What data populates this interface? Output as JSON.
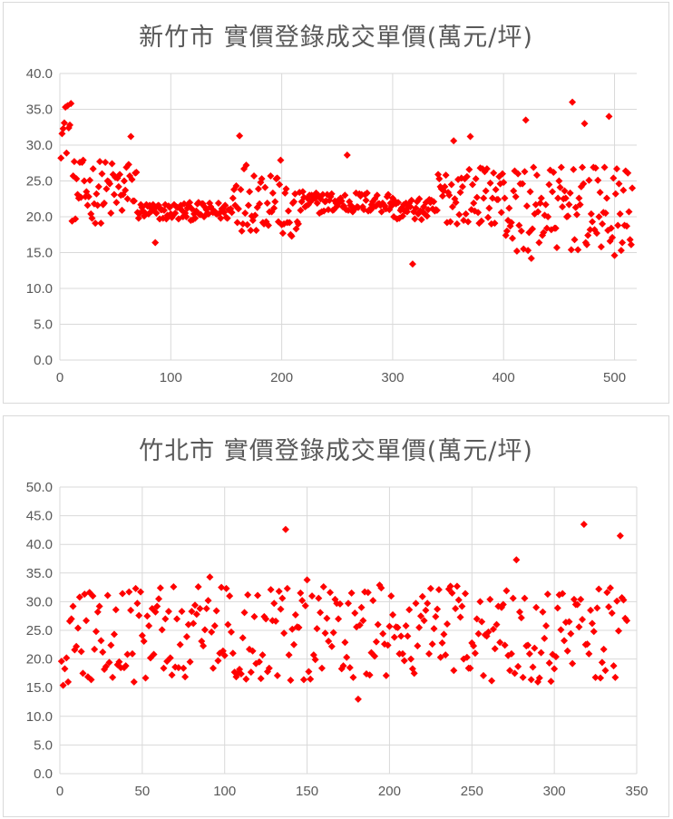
{
  "chart_data": [
    {
      "type": "scatter",
      "title": "新竹市 實價登錄成交單價(萬元/坪)",
      "xlim": [
        0,
        520
      ],
      "ylim": [
        0,
        40
      ],
      "x_ticks": [
        0,
        100,
        200,
        300,
        400,
        500
      ],
      "y_ticks": [
        "0.0",
        "5.0",
        "10.0",
        "15.0",
        "20.0",
        "25.0",
        "30.0",
        "35.0",
        "40.0"
      ],
      "grid": true,
      "legend": "none",
      "color": "#ff0000",
      "marker": "diamond",
      "n_points": 516,
      "x": [],
      "y": []
    },
    {
      "type": "scatter",
      "title": "竹北市 實價登錄成交單價(萬元/坪)",
      "xlim": [
        0,
        350
      ],
      "ylim": [
        0,
        50
      ],
      "x_ticks": [
        0,
        50,
        100,
        150,
        200,
        250,
        300,
        350
      ],
      "y_ticks": [
        "0.0",
        "5.0",
        "10.0",
        "15.0",
        "20.0",
        "25.0",
        "30.0",
        "35.0",
        "40.0",
        "45.0",
        "50.0"
      ],
      "grid": true,
      "legend": "none",
      "color": "#ff0000",
      "marker": "diamond",
      "n_points": 344,
      "x": [],
      "y": []
    }
  ]
}
